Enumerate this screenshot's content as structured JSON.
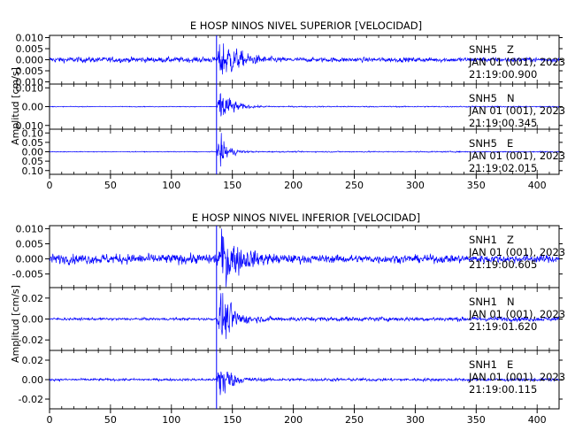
{
  "colors": {
    "trace": "#0000ff",
    "frame": "#000000",
    "marker": "#0000ff"
  },
  "chart_data": [
    {
      "type": "line",
      "title": "E HOSP NINOS NIVEL SUPERIOR [VELOCIDAD]",
      "ylabel": "Amplitud [cm/s]",
      "xlabel": "",
      "xlim": [
        0,
        418
      ],
      "xticks": [
        0,
        50,
        100,
        150,
        200,
        250,
        300,
        350,
        400
      ],
      "xticklabels": [
        "0",
        "50",
        "100",
        "150",
        "200",
        "250",
        "300",
        "350",
        "400"
      ],
      "grid": false,
      "event_marker_x": 137,
      "panels": [
        {
          "station": "SNH5",
          "component": "Z",
          "date": "JAN 01 (001), 2023",
          "time": "21:19:00.900",
          "ylim": [
            -0.011,
            0.011
          ],
          "yticks": [
            0.01,
            0.005,
            0.0,
            -0.005,
            -0.01
          ],
          "yticklabels": [
            "0.010",
            "0.005",
            "0.000",
            "0.005",
            "0.010"
          ],
          "envelope": {
            "noise": 0.0012,
            "onset": 137,
            "peak_time": 141,
            "peak": 0.0105,
            "decay": 14,
            "coda_level": 0.0008,
            "end_noise": 0.001
          }
        },
        {
          "station": "SNH5",
          "component": "N",
          "date": "JAN 01 (001), 2023",
          "time": "21:19:00.345",
          "ylim": [
            -0.012,
            0.012
          ],
          "yticks": [
            0.01,
            0.0,
            -0.01
          ],
          "yticklabels": [
            "0.010",
            "0.00",
            "0.010"
          ],
          "envelope": {
            "noise": 0.0002,
            "onset": 137,
            "peak_time": 141,
            "peak": 0.011,
            "decay": 8,
            "coda_level": 0.0003,
            "end_noise": 0.0002
          }
        },
        {
          "station": "SNH5",
          "component": "E",
          "date": "JAN 01 (001), 2023",
          "time": "21:19:02.015",
          "ylim": [
            -0.12,
            0.12
          ],
          "yticks": [
            0.1,
            0.05,
            0.0,
            -0.05,
            -0.1
          ],
          "yticklabels": [
            "0.10",
            "0.05",
            "0.00",
            "0.05",
            "0.10"
          ],
          "envelope": {
            "noise": 0.002,
            "onset": 137,
            "peak_time": 140,
            "peak": 0.1,
            "decay": 6,
            "coda_level": 0.003,
            "end_noise": 0.002
          }
        }
      ]
    },
    {
      "type": "line",
      "title": "E HOSP NINOS NIVEL INFERIOR [VELOCIDAD]",
      "ylabel": "Amplitud [cm/s]",
      "xlabel": "",
      "xlim": [
        0,
        418
      ],
      "xticks": [
        0,
        50,
        100,
        150,
        200,
        250,
        300,
        350,
        400
      ],
      "xticklabels": [
        "0",
        "50",
        "100",
        "150",
        "200",
        "250",
        "300",
        "350",
        "400"
      ],
      "grid": false,
      "event_marker_x": 137,
      "panels": [
        {
          "station": "SNH1",
          "component": "Z",
          "date": "JAN 01 (001), 2023",
          "time": "21:19:00.605",
          "ylim": [
            -0.0095,
            0.011
          ],
          "yticks": [
            0.01,
            0.005,
            0.0,
            -0.005
          ],
          "yticklabels": [
            "0.010",
            "0.005",
            "0.000",
            "-0.005"
          ],
          "envelope": {
            "noise": 0.0016,
            "onset": 137,
            "peak_time": 141,
            "peak": 0.01,
            "decay": 16,
            "coda_level": 0.0012,
            "end_noise": 0.0013
          }
        },
        {
          "station": "SNH1",
          "component": "N",
          "date": "JAN 01 (001), 2023",
          "time": "21:19:01.620",
          "ylim": [
            -0.03,
            0.03
          ],
          "yticks": [
            0.02,
            0.0,
            -0.02
          ],
          "yticklabels": [
            "0.02",
            "0.00",
            "-0.02"
          ],
          "envelope": {
            "noise": 0.0012,
            "onset": 137,
            "peak_time": 141,
            "peak": 0.028,
            "decay": 9,
            "coda_level": 0.002,
            "end_noise": 0.0012
          }
        },
        {
          "station": "SNH1",
          "component": "E",
          "date": "JAN 01 (001), 2023",
          "time": "21:19:00.115",
          "ylim": [
            -0.03,
            0.03
          ],
          "yticks": [
            0.02,
            0.0,
            -0.02
          ],
          "yticklabels": [
            "0.02",
            "0.00",
            "-0.02"
          ],
          "envelope": {
            "noise": 0.0012,
            "onset": 137,
            "peak_time": 140,
            "peak": 0.028,
            "decay": 7,
            "coda_level": 0.0015,
            "end_noise": 0.0012
          }
        }
      ]
    }
  ]
}
